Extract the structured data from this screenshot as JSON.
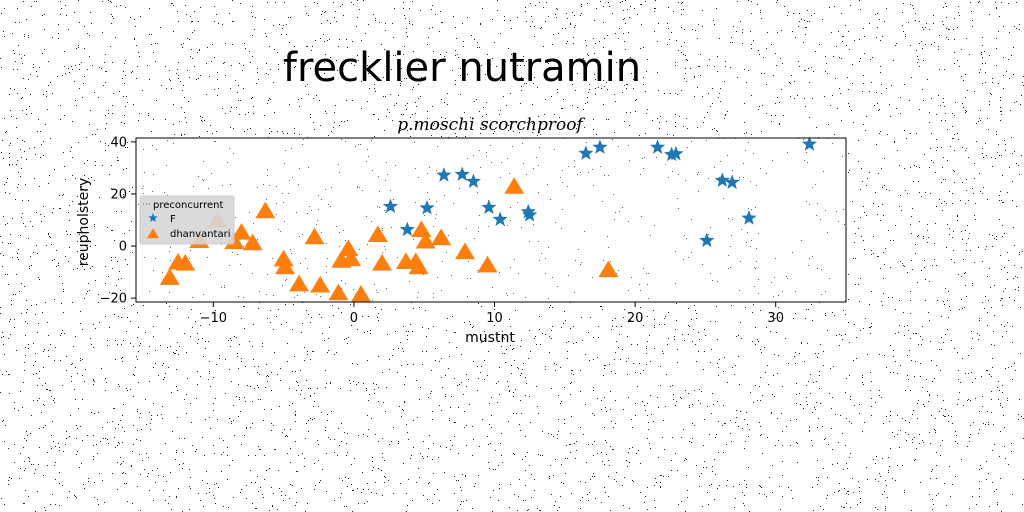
{
  "chart_data": {
    "type": "scatter",
    "title": "frecklier nutramin",
    "subtitle": "p.moschi scorchproof",
    "xlabel": "mustnt",
    "ylabel": "reupholstery",
    "xlim": [
      -15.5,
      35
    ],
    "ylim": [
      -21.5,
      41.5
    ],
    "xticks": [
      -10,
      0,
      10,
      20,
      30
    ],
    "yticks": [
      -20,
      0,
      20,
      40
    ],
    "grid": false,
    "legend": {
      "placement": "center-left",
      "title": "preconcurrent"
    },
    "series": [
      {
        "name": "F",
        "marker": "star",
        "color": "#1f77b4",
        "points": [
          [
            2.6,
            15.2
          ],
          [
            3.8,
            6.3
          ],
          [
            5.2,
            14.6
          ],
          [
            6.4,
            27.2
          ],
          [
            7.7,
            27.5
          ],
          [
            8.5,
            24.8
          ],
          [
            9.6,
            14.8
          ],
          [
            10.4,
            10.2
          ],
          [
            12.4,
            13.1
          ],
          [
            12.5,
            11.9
          ],
          [
            16.5,
            35.6
          ],
          [
            17.5,
            37.9
          ],
          [
            21.6,
            37.9
          ],
          [
            22.6,
            35.1
          ],
          [
            22.9,
            35.4
          ],
          [
            25.1,
            2.1
          ],
          [
            26.2,
            25.2
          ],
          [
            26.9,
            24.4
          ],
          [
            28.1,
            10.7
          ],
          [
            32.4,
            39.1
          ]
        ]
      },
      {
        "name": "dhanvantari",
        "marker": "triangle",
        "color": "#ff7f0e",
        "points": [
          [
            -13.1,
            -12.2
          ],
          [
            -12.5,
            -6.3
          ],
          [
            -12.0,
            -6.7
          ],
          [
            -11.0,
            2.0
          ],
          [
            -9.7,
            9.8
          ],
          [
            -8.5,
            1.6
          ],
          [
            -8.0,
            5.2
          ],
          [
            -7.2,
            1.1
          ],
          [
            -6.3,
            13.4
          ],
          [
            -5.0,
            -5.1
          ],
          [
            -4.9,
            -8.1
          ],
          [
            -3.9,
            -14.7
          ],
          [
            -2.8,
            3.4
          ],
          [
            -2.4,
            -15.1
          ],
          [
            -1.1,
            -18.1
          ],
          [
            -0.9,
            -5.6
          ],
          [
            -0.4,
            -1.1
          ],
          [
            -0.2,
            -5.0
          ],
          [
            0.5,
            -18.6
          ],
          [
            1.7,
            4.3
          ],
          [
            2.0,
            -6.7
          ],
          [
            3.7,
            -6.1
          ],
          [
            4.4,
            -6.1
          ],
          [
            4.6,
            -8.1
          ],
          [
            4.8,
            6.2
          ],
          [
            5.1,
            1.8
          ],
          [
            6.2,
            3.1
          ],
          [
            7.9,
            -2.3
          ],
          [
            9.5,
            -7.4
          ],
          [
            11.4,
            22.8
          ],
          [
            18.1,
            -9.2
          ]
        ]
      }
    ]
  }
}
